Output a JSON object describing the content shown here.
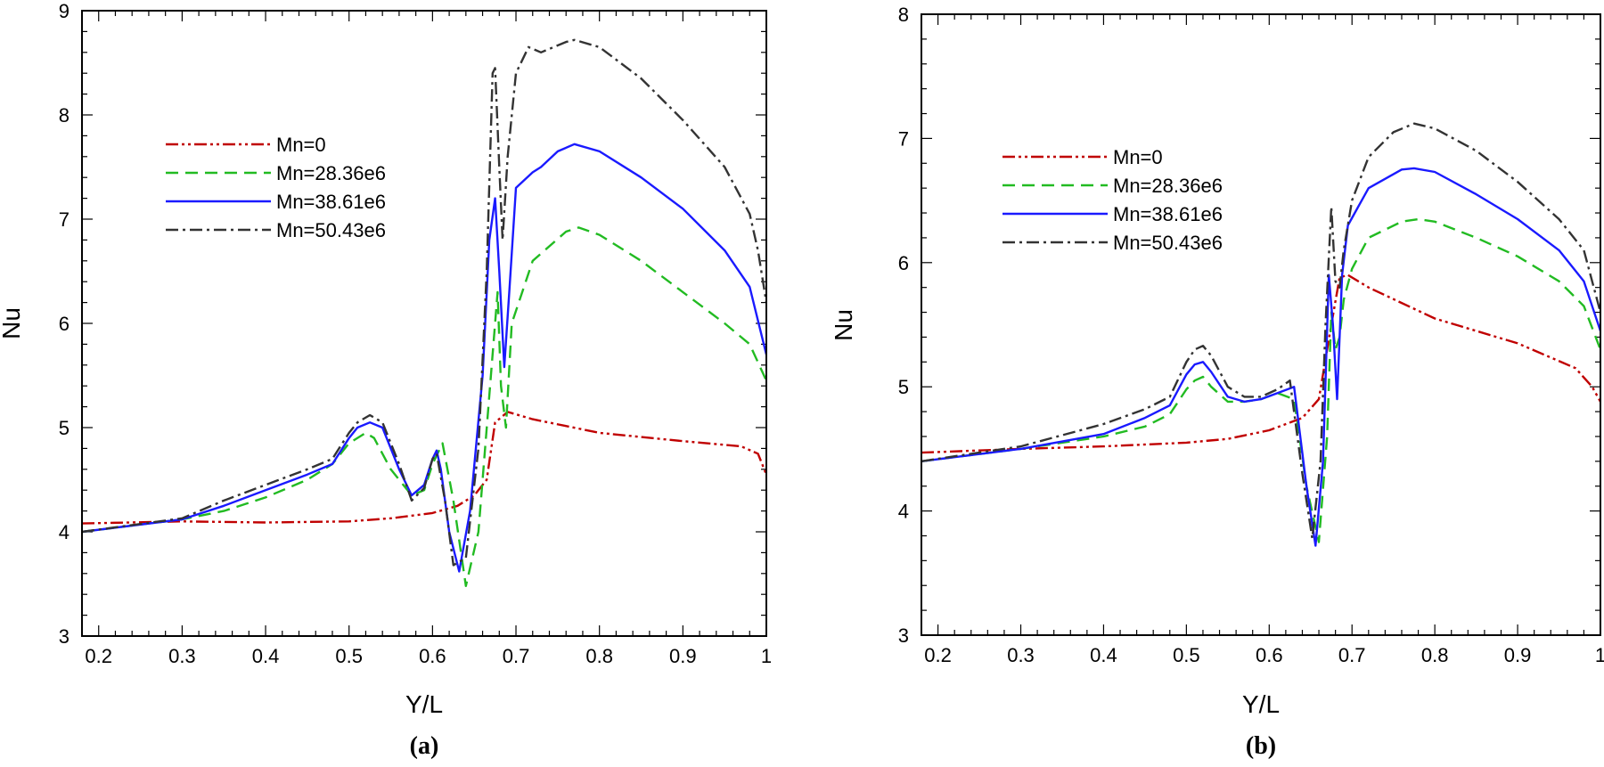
{
  "chart_data": [
    {
      "type": "line",
      "panel_label": "(a)",
      "xlabel": "Y/L",
      "ylabel": "Nu",
      "xlim": [
        0.18,
        1.0
      ],
      "ylim": [
        3,
        9
      ],
      "xticks": [
        "0.2",
        "0.3",
        "0.4",
        "0.5",
        "0.6",
        "0.7",
        "0.8",
        "0.9",
        "1"
      ],
      "yticks": [
        "3",
        "4",
        "5",
        "6",
        "7",
        "8",
        "9"
      ],
      "legend_position": "upper-left",
      "series": [
        {
          "name": "Mn=0",
          "color": "#c00000",
          "dash": "dash-dot-dot",
          "x": [
            0.18,
            0.3,
            0.4,
            0.5,
            0.55,
            0.6,
            0.63,
            0.65,
            0.665,
            0.675,
            0.69,
            0.72,
            0.8,
            0.9,
            0.97,
            0.99,
            1.0
          ],
          "y": [
            4.08,
            4.1,
            4.09,
            4.1,
            4.13,
            4.18,
            4.25,
            4.35,
            4.5,
            5.05,
            5.15,
            5.08,
            4.95,
            4.87,
            4.82,
            4.75,
            4.55
          ]
        },
        {
          "name": "Mn=28.36e6",
          "color": "#22bb22",
          "dash": "dash",
          "x": [
            0.18,
            0.3,
            0.35,
            0.4,
            0.45,
            0.48,
            0.5,
            0.52,
            0.53,
            0.55,
            0.575,
            0.59,
            0.6,
            0.612,
            0.625,
            0.64,
            0.655,
            0.67,
            0.678,
            0.682,
            0.688,
            0.695,
            0.72,
            0.76,
            0.775,
            0.8,
            0.85,
            0.9,
            0.95,
            0.98,
            1.0
          ],
          "y": [
            4.0,
            4.12,
            4.2,
            4.33,
            4.5,
            4.65,
            4.85,
            4.95,
            4.9,
            4.6,
            4.35,
            4.4,
            4.65,
            4.85,
            4.3,
            3.48,
            4.0,
            5.5,
            6.3,
            5.4,
            5.0,
            6.0,
            6.6,
            6.88,
            6.92,
            6.85,
            6.6,
            6.3,
            6.0,
            5.8,
            5.45
          ]
        },
        {
          "name": "Mn=38.61e6",
          "color": "#1a1aff",
          "dash": "solid",
          "x": [
            0.18,
            0.3,
            0.35,
            0.4,
            0.45,
            0.48,
            0.5,
            0.51,
            0.525,
            0.54,
            0.56,
            0.575,
            0.59,
            0.6,
            0.605,
            0.61,
            0.62,
            0.632,
            0.645,
            0.66,
            0.668,
            0.675,
            0.68,
            0.686,
            0.692,
            0.7,
            0.72,
            0.73,
            0.75,
            0.77,
            0.8,
            0.85,
            0.9,
            0.95,
            0.98,
            1.0
          ],
          "y": [
            4.0,
            4.12,
            4.25,
            4.4,
            4.55,
            4.65,
            4.9,
            5.0,
            5.05,
            5.0,
            4.6,
            4.35,
            4.45,
            4.7,
            4.78,
            4.6,
            4.0,
            3.62,
            4.2,
            5.5,
            6.8,
            7.2,
            6.5,
            5.58,
            6.3,
            7.3,
            7.45,
            7.5,
            7.65,
            7.72,
            7.65,
            7.4,
            7.1,
            6.7,
            6.35,
            5.7
          ]
        },
        {
          "name": "Mn=50.43e6",
          "color": "#333333",
          "dash": "dash-dot",
          "x": [
            0.18,
            0.3,
            0.35,
            0.4,
            0.45,
            0.48,
            0.5,
            0.51,
            0.525,
            0.54,
            0.56,
            0.575,
            0.59,
            0.6,
            0.605,
            0.615,
            0.625,
            0.64,
            0.655,
            0.665,
            0.672,
            0.675,
            0.68,
            0.684,
            0.69,
            0.7,
            0.715,
            0.73,
            0.76,
            0.77,
            0.8,
            0.85,
            0.9,
            0.95,
            0.98,
            0.99,
            1.0
          ],
          "y": [
            4.0,
            4.13,
            4.3,
            4.45,
            4.6,
            4.7,
            4.95,
            5.05,
            5.12,
            5.05,
            4.65,
            4.3,
            4.42,
            4.7,
            4.75,
            4.3,
            3.68,
            3.75,
            4.8,
            6.5,
            8.4,
            8.45,
            7.5,
            6.8,
            7.6,
            8.4,
            8.65,
            8.6,
            8.7,
            8.72,
            8.65,
            8.35,
            7.95,
            7.5,
            7.05,
            6.7,
            6.2
          ]
        }
      ]
    },
    {
      "type": "line",
      "panel_label": "(b)",
      "xlabel": "Y/L",
      "ylabel": "Nu",
      "xlim": [
        0.18,
        1.0
      ],
      "ylim": [
        3,
        8
      ],
      "xticks": [
        "0.2",
        "0.3",
        "0.4",
        "0.5",
        "0.6",
        "0.7",
        "0.8",
        "0.9",
        "1"
      ],
      "yticks": [
        "3",
        "4",
        "5",
        "6",
        "7",
        "8"
      ],
      "legend_position": "upper-left",
      "series": [
        {
          "name": "Mn=0",
          "color": "#c00000",
          "dash": "dash-dot-dot",
          "x": [
            0.18,
            0.3,
            0.4,
            0.5,
            0.55,
            0.6,
            0.64,
            0.66,
            0.675,
            0.685,
            0.695,
            0.72,
            0.8,
            0.9,
            0.97,
            0.99,
            1.0
          ],
          "y": [
            4.47,
            4.5,
            4.52,
            4.55,
            4.58,
            4.65,
            4.75,
            4.9,
            5.5,
            5.88,
            5.9,
            5.8,
            5.55,
            5.35,
            5.15,
            5.0,
            4.88
          ]
        },
        {
          "name": "Mn=28.36e6",
          "color": "#22bb22",
          "dash": "dash",
          "x": [
            0.18,
            0.3,
            0.4,
            0.45,
            0.48,
            0.5,
            0.51,
            0.52,
            0.53,
            0.55,
            0.57,
            0.59,
            0.61,
            0.63,
            0.645,
            0.66,
            0.67,
            0.675,
            0.68,
            0.685,
            0.69,
            0.7,
            0.72,
            0.76,
            0.78,
            0.8,
            0.85,
            0.9,
            0.95,
            0.98,
            1.0
          ],
          "y": [
            4.4,
            4.5,
            4.6,
            4.68,
            4.78,
            4.98,
            5.05,
            5.08,
            5.0,
            4.88,
            4.88,
            4.9,
            4.95,
            4.9,
            4.2,
            3.75,
            4.6,
            5.6,
            5.3,
            5.4,
            5.7,
            5.95,
            6.2,
            6.33,
            6.35,
            6.33,
            6.2,
            6.05,
            5.85,
            5.65,
            5.3
          ]
        },
        {
          "name": "Mn=38.61e6",
          "color": "#1a1aff",
          "dash": "solid",
          "x": [
            0.18,
            0.3,
            0.4,
            0.45,
            0.48,
            0.5,
            0.51,
            0.52,
            0.53,
            0.55,
            0.57,
            0.59,
            0.61,
            0.63,
            0.645,
            0.656,
            0.665,
            0.672,
            0.677,
            0.682,
            0.688,
            0.695,
            0.72,
            0.76,
            0.775,
            0.8,
            0.85,
            0.9,
            0.95,
            0.98,
            1.0
          ],
          "y": [
            4.4,
            4.5,
            4.62,
            4.75,
            4.85,
            5.1,
            5.18,
            5.2,
            5.12,
            4.92,
            4.88,
            4.9,
            4.95,
            5.0,
            4.2,
            3.72,
            4.4,
            5.9,
            5.5,
            4.9,
            5.9,
            6.3,
            6.6,
            6.75,
            6.76,
            6.73,
            6.55,
            6.35,
            6.1,
            5.85,
            5.45
          ]
        },
        {
          "name": "Mn=50.43e6",
          "color": "#333333",
          "dash": "dash-dot",
          "x": [
            0.18,
            0.3,
            0.4,
            0.45,
            0.48,
            0.5,
            0.51,
            0.52,
            0.53,
            0.55,
            0.57,
            0.59,
            0.61,
            0.625,
            0.64,
            0.652,
            0.662,
            0.668,
            0.675,
            0.68,
            0.685,
            0.69,
            0.7,
            0.72,
            0.75,
            0.775,
            0.8,
            0.85,
            0.9,
            0.95,
            0.98,
            1.0
          ],
          "y": [
            4.4,
            4.52,
            4.7,
            4.82,
            4.92,
            5.2,
            5.3,
            5.33,
            5.25,
            5.0,
            4.92,
            4.92,
            4.98,
            5.05,
            4.3,
            3.78,
            4.4,
            5.5,
            6.45,
            5.85,
            5.8,
            6.1,
            6.5,
            6.85,
            7.05,
            7.12,
            7.08,
            6.9,
            6.65,
            6.35,
            6.1,
            5.6
          ]
        }
      ]
    }
  ]
}
